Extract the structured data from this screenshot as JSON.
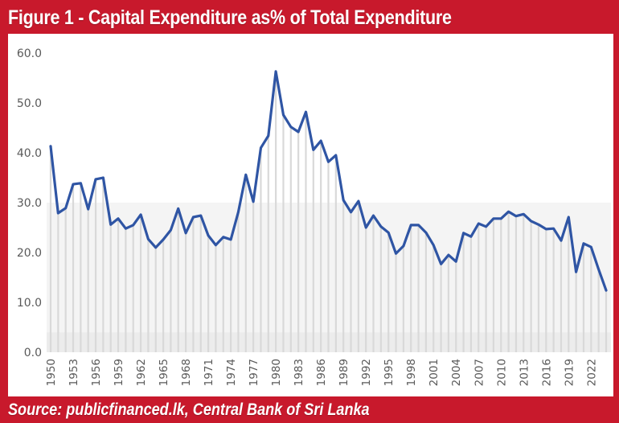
{
  "header": {
    "title": "Figure 1 - Capital Expenditure as% of Total Expenditure"
  },
  "footer": {
    "source": "Source: publicfinanced.lk, Central Bank of Sri Lanka"
  },
  "colors": {
    "frame": "#c8192c",
    "line": "#2f55a4",
    "drop": "#d9d9d9",
    "band": "#f4f4f4",
    "axis_text": "#595959"
  },
  "chart_data": {
    "type": "line",
    "title": "Figure 1 - Capital Expenditure as% of Total Expenditure",
    "xlabel": "",
    "ylabel": "",
    "ylim": [
      0,
      60
    ],
    "yticks": [
      "0.0",
      "10.0",
      "20.0",
      "30.0",
      "40.0",
      "50.0",
      "60.0"
    ],
    "xticks": [
      "1950",
      "1953",
      "1956",
      "1959",
      "1962",
      "1965",
      "1968",
      "1971",
      "1974",
      "1977",
      "1980",
      "1983",
      "1986",
      "1989",
      "1992",
      "1995",
      "1998",
      "2001",
      "2004",
      "2007",
      "2010",
      "2013",
      "2016",
      "2019",
      "2022"
    ],
    "x": [
      1950,
      1951,
      1952,
      1953,
      1954,
      1955,
      1956,
      1957,
      1958,
      1959,
      1960,
      1961,
      1962,
      1963,
      1964,
      1965,
      1966,
      1967,
      1968,
      1969,
      1970,
      1971,
      1972,
      1973,
      1974,
      1975,
      1976,
      1977,
      1978,
      1979,
      1980,
      1981,
      1982,
      1983,
      1984,
      1985,
      1986,
      1987,
      1988,
      1989,
      1990,
      1991,
      1992,
      1993,
      1994,
      1995,
      1996,
      1997,
      1998,
      1999,
      2000,
      2001,
      2002,
      2003,
      2004,
      2005,
      2006,
      2007,
      2008,
      2009,
      2010,
      2011,
      2012,
      2013,
      2014,
      2015,
      2016,
      2017,
      2018,
      2019,
      2020,
      2021,
      2022,
      2023,
      2024
    ],
    "series": [
      {
        "name": "Capital Expenditure as % of Total Expenditure",
        "values": [
          41.3,
          27.9,
          28.9,
          33.7,
          33.9,
          28.7,
          34.7,
          35.0,
          25.6,
          26.8,
          24.8,
          25.5,
          27.6,
          22.7,
          21.0,
          22.6,
          24.5,
          28.8,
          23.9,
          27.1,
          27.4,
          23.4,
          21.5,
          23.1,
          22.6,
          28.1,
          35.6,
          30.2,
          41.0,
          43.4,
          56.3,
          47.6,
          45.2,
          44.2,
          48.2,
          40.6,
          42.4,
          38.2,
          39.5,
          30.5,
          28.1,
          30.3,
          25.0,
          27.4,
          25.2,
          24.0,
          19.8,
          21.3,
          25.5,
          25.5,
          24.0,
          21.5,
          17.7,
          19.5,
          18.2,
          23.9,
          23.2,
          25.8,
          25.2,
          26.8,
          26.8,
          28.2,
          27.3,
          27.7,
          26.3,
          25.6,
          24.7,
          24.8,
          22.4,
          27.1,
          16.1,
          21.8,
          21.1,
          16.6,
          12.4
        ]
      }
    ],
    "grid": false,
    "legend": "none"
  }
}
